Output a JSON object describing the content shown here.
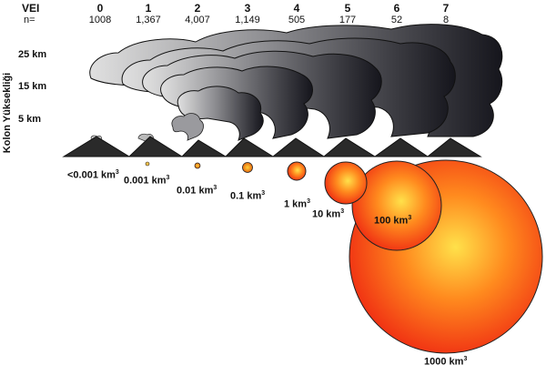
{
  "header": {
    "vei_label": "VEI",
    "n_label": "n=",
    "columns": [
      {
        "vei": "0",
        "n": "1008"
      },
      {
        "vei": "1",
        "n": "1,367"
      },
      {
        "vei": "2",
        "n": "4,007"
      },
      {
        "vei": "3",
        "n": "1,149"
      },
      {
        "vei": "4",
        "n": "505"
      },
      {
        "vei": "5",
        "n": "177"
      },
      {
        "vei": "6",
        "n": "52"
      },
      {
        "vei": "7",
        "n": "8"
      }
    ]
  },
  "y_axis": {
    "title": "Kolon Yüksekliği",
    "ticks": [
      "25 km",
      "15 km",
      "5 km"
    ]
  },
  "volumes": [
    {
      "value": "<0.001 km",
      "unit_sup": "3"
    },
    {
      "value": "0.001 km",
      "unit_sup": "3"
    },
    {
      "value": "0.01 km",
      "unit_sup": "3"
    },
    {
      "value": "0.1 km",
      "unit_sup": "3"
    },
    {
      "value": "1 km",
      "unit_sup": "3"
    },
    {
      "value": "10 km",
      "unit_sup": "3"
    },
    {
      "value": "100 km",
      "unit_sup": "3"
    },
    {
      "value": "1000 km",
      "unit_sup": "3"
    }
  ],
  "colors": {
    "sphere_center": "#ffe14a",
    "sphere_mid": "#ff8a1e",
    "sphere_edge": "#ef2a12",
    "cloud_light": "#dcdcdc",
    "cloud_dark": "#1a1a22",
    "ground": "#2a2a2a"
  }
}
